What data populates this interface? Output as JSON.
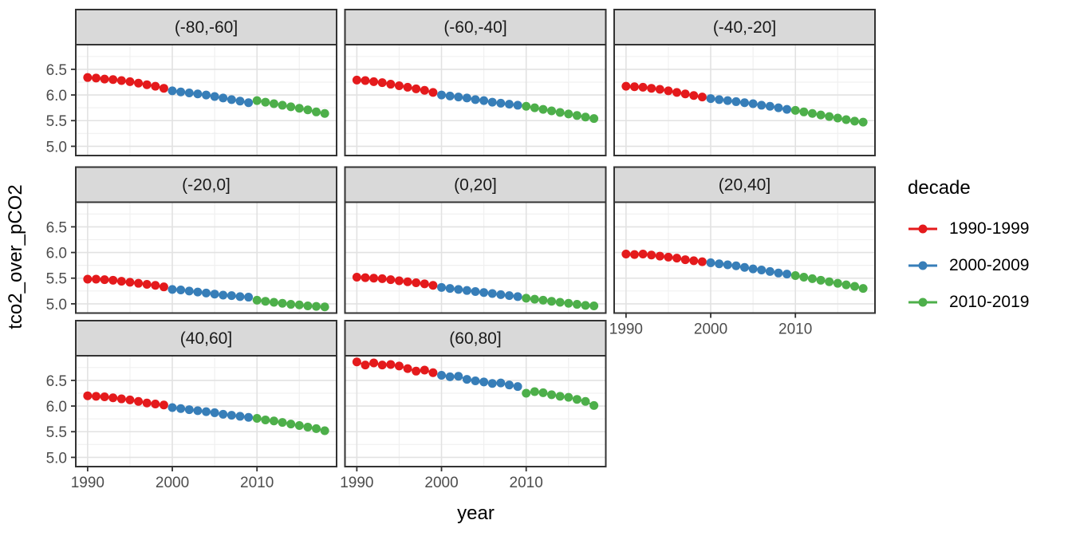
{
  "figure": {
    "x_axis_title": "year",
    "y_axis_title": "tco2_over_pCO2"
  },
  "legend": {
    "title": "decade",
    "entries": [
      {
        "label": "1990-1999",
        "color": "#E41A1C"
      },
      {
        "label": "2000-2009",
        "color": "#377EB8"
      },
      {
        "label": "2010-2019",
        "color": "#4DAF4A"
      }
    ]
  },
  "colors": {
    "red": "#E41A1C",
    "blue": "#377EB8",
    "green": "#4DAF4A",
    "strip_bg": "#D9D9D9",
    "strip_border": "#333333",
    "panel_border": "#333333",
    "panel_bg": "#FFFFFF",
    "grid_major": "#E2E2E2",
    "grid_minor": "#F0F0F0",
    "tick_mark": "#333333",
    "tick_label": "#4D4D4D"
  },
  "axes": {
    "y_ticks": [
      {
        "label": "6.5",
        "value": 6.5
      },
      {
        "label": "6.0",
        "value": 6.0
      },
      {
        "label": "5.5",
        "value": 5.5
      },
      {
        "label": "5.0",
        "value": 5.0
      }
    ],
    "x_ticks": [
      {
        "label": "1990",
        "value": 1990
      },
      {
        "label": "2000",
        "value": 2000
      },
      {
        "label": "2010",
        "value": 2010
      }
    ],
    "y_minor": [
      6.75,
      6.25,
      5.75,
      5.25
    ],
    "x_minor": [
      1995,
      2005,
      2015
    ],
    "y_range": [
      4.82,
      6.98
    ],
    "x_range": [
      1988.6,
      2019.4
    ]
  },
  "chart_data": {
    "type": "scatter",
    "title": "",
    "xlabel": "year",
    "ylabel": "tco2_over_pCO2",
    "facet_variable": "latitude_band",
    "series_variable": "decade",
    "grid": true,
    "legend_position": "right",
    "facets": [
      {
        "label": "(-80,-60]",
        "series": [
          {
            "name": "1990-1999",
            "start_year": 1990,
            "values": [
              6.34,
              6.33,
              6.31,
              6.3,
              6.28,
              6.26,
              6.23,
              6.2,
              6.17,
              6.13
            ]
          },
          {
            "name": "2000-2009",
            "start_year": 2000,
            "values": [
              6.08,
              6.06,
              6.04,
              6.02,
              6.0,
              5.97,
              5.94,
              5.91,
              5.88,
              5.85
            ]
          },
          {
            "name": "2010-2019",
            "start_year": 2010,
            "values": [
              5.89,
              5.86,
              5.83,
              5.8,
              5.77,
              5.74,
              5.71,
              5.67,
              5.64
            ]
          }
        ]
      },
      {
        "label": "(-60,-40]",
        "series": [
          {
            "name": "1990-1999",
            "start_year": 1990,
            "values": [
              6.29,
              6.28,
              6.26,
              6.24,
              6.21,
              6.18,
              6.15,
              6.12,
              6.09,
              6.05
            ]
          },
          {
            "name": "2000-2009",
            "start_year": 2000,
            "values": [
              6.0,
              5.98,
              5.96,
              5.94,
              5.91,
              5.89,
              5.86,
              5.84,
              5.82,
              5.8
            ]
          },
          {
            "name": "2010-2019",
            "start_year": 2010,
            "values": [
              5.78,
              5.75,
              5.72,
              5.69,
              5.66,
              5.63,
              5.6,
              5.57,
              5.54
            ]
          }
        ]
      },
      {
        "label": "(-40,-20]",
        "series": [
          {
            "name": "1990-1999",
            "start_year": 1990,
            "values": [
              6.17,
              6.16,
              6.15,
              6.13,
              6.11,
              6.08,
              6.05,
              6.02,
              5.99,
              5.96
            ]
          },
          {
            "name": "2000-2009",
            "start_year": 2000,
            "values": [
              5.93,
              5.91,
              5.89,
              5.87,
              5.85,
              5.83,
              5.8,
              5.78,
              5.75,
              5.72
            ]
          },
          {
            "name": "2010-2019",
            "start_year": 2010,
            "values": [
              5.7,
              5.67,
              5.64,
              5.61,
              5.58,
              5.55,
              5.52,
              5.49,
              5.47
            ]
          }
        ]
      },
      {
        "label": "(-20,0]",
        "series": [
          {
            "name": "1990-1999",
            "start_year": 1990,
            "values": [
              5.48,
              5.48,
              5.47,
              5.46,
              5.44,
              5.42,
              5.4,
              5.38,
              5.36,
              5.33
            ]
          },
          {
            "name": "2000-2009",
            "start_year": 2000,
            "values": [
              5.28,
              5.27,
              5.25,
              5.23,
              5.21,
              5.19,
              5.17,
              5.16,
              5.14,
              5.13
            ]
          },
          {
            "name": "2010-2019",
            "start_year": 2010,
            "values": [
              5.07,
              5.05,
              5.03,
              5.01,
              4.99,
              4.98,
              4.96,
              4.95,
              4.94
            ]
          }
        ]
      },
      {
        "label": "(0,20]",
        "series": [
          {
            "name": "1990-1999",
            "start_year": 1990,
            "values": [
              5.52,
              5.51,
              5.5,
              5.49,
              5.47,
              5.45,
              5.43,
              5.41,
              5.39,
              5.36
            ]
          },
          {
            "name": "2000-2009",
            "start_year": 2000,
            "values": [
              5.32,
              5.3,
              5.28,
              5.26,
              5.24,
              5.22,
              5.2,
              5.18,
              5.16,
              5.14
            ]
          },
          {
            "name": "2010-2019",
            "start_year": 2010,
            "values": [
              5.11,
              5.09,
              5.07,
              5.05,
              5.03,
              5.01,
              4.99,
              4.97,
              4.96
            ]
          }
        ]
      },
      {
        "label": "(20,40]",
        "series": [
          {
            "name": "1990-1999",
            "start_year": 1990,
            "values": [
              5.97,
              5.96,
              5.97,
              5.95,
              5.93,
              5.91,
              5.89,
              5.86,
              5.84,
              5.82
            ]
          },
          {
            "name": "2000-2009",
            "start_year": 2000,
            "values": [
              5.8,
              5.78,
              5.76,
              5.74,
              5.71,
              5.68,
              5.66,
              5.63,
              5.6,
              5.58
            ]
          },
          {
            "name": "2010-2019",
            "start_year": 2010,
            "values": [
              5.55,
              5.52,
              5.49,
              5.46,
              5.43,
              5.4,
              5.37,
              5.34,
              5.3
            ]
          }
        ]
      },
      {
        "label": "(40,60]",
        "series": [
          {
            "name": "1990-1999",
            "start_year": 1990,
            "values": [
              6.2,
              6.19,
              6.18,
              6.16,
              6.14,
              6.12,
              6.09,
              6.06,
              6.04,
              6.02
            ]
          },
          {
            "name": "2000-2009",
            "start_year": 2000,
            "values": [
              5.97,
              5.95,
              5.93,
              5.91,
              5.89,
              5.87,
              5.84,
              5.82,
              5.8,
              5.78
            ]
          },
          {
            "name": "2010-2019",
            "start_year": 2010,
            "values": [
              5.76,
              5.73,
              5.71,
              5.68,
              5.65,
              5.62,
              5.59,
              5.56,
              5.52
            ]
          }
        ]
      },
      {
        "label": "(60,80]",
        "series": [
          {
            "name": "1990-1999",
            "start_year": 1990,
            "values": [
              6.86,
              6.8,
              6.84,
              6.8,
              6.81,
              6.78,
              6.73,
              6.68,
              6.7,
              6.65
            ]
          },
          {
            "name": "2000-2009",
            "start_year": 2000,
            "values": [
              6.6,
              6.57,
              6.58,
              6.52,
              6.49,
              6.47,
              6.44,
              6.45,
              6.41,
              6.38
            ]
          },
          {
            "name": "2010-2019",
            "start_year": 2010,
            "values": [
              6.25,
              6.28,
              6.26,
              6.22,
              6.19,
              6.17,
              6.13,
              6.09,
              6.01
            ]
          }
        ]
      }
    ]
  }
}
